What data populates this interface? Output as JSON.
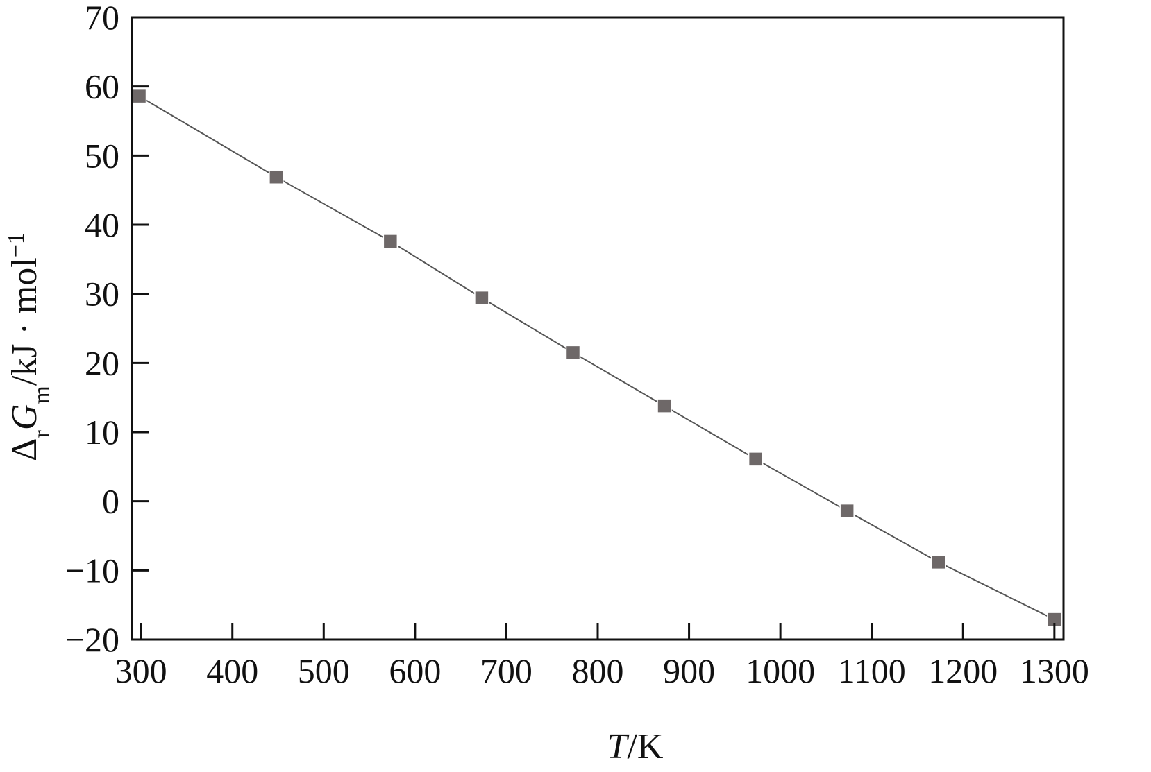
{
  "chart_data": {
    "type": "line",
    "xlabel": {
      "var": "T",
      "unit": "/K"
    },
    "ylabel": {
      "delta": "Δ",
      "sub_r": "r",
      "var": "G",
      "sub_m": "m",
      "unit": "/kJ · mol",
      "sup": "−1"
    },
    "xlim": [
      290,
      1310
    ],
    "ylim": [
      -20,
      70
    ],
    "xticks": [
      300,
      400,
      500,
      600,
      700,
      800,
      900,
      1000,
      1100,
      1200,
      1300
    ],
    "xtick_labels": [
      "300",
      "400",
      "500",
      "600",
      "700",
      "800",
      "900",
      "1000",
      "1100",
      "1200",
      "1300"
    ],
    "yticks": [
      -20,
      -10,
      0,
      10,
      20,
      30,
      40,
      50,
      60,
      70
    ],
    "ytick_labels": [
      "−20",
      "−10",
      "0",
      "10",
      "20",
      "30",
      "40",
      "50",
      "60",
      "70"
    ],
    "series": [
      {
        "marker": "square",
        "color": "#6e6868",
        "line_color": "#555555",
        "points": [
          {
            "x": 298,
            "y": 58.6
          },
          {
            "x": 448,
            "y": 46.9
          },
          {
            "x": 573,
            "y": 37.6
          },
          {
            "x": 673,
            "y": 29.4
          },
          {
            "x": 773,
            "y": 21.5
          },
          {
            "x": 873,
            "y": 13.8
          },
          {
            "x": 973,
            "y": 6.1
          },
          {
            "x": 1073,
            "y": -1.4
          },
          {
            "x": 1173,
            "y": -8.8
          },
          {
            "x": 1300,
            "y": -17.1
          }
        ]
      }
    ],
    "grid": false,
    "legend": "none"
  }
}
